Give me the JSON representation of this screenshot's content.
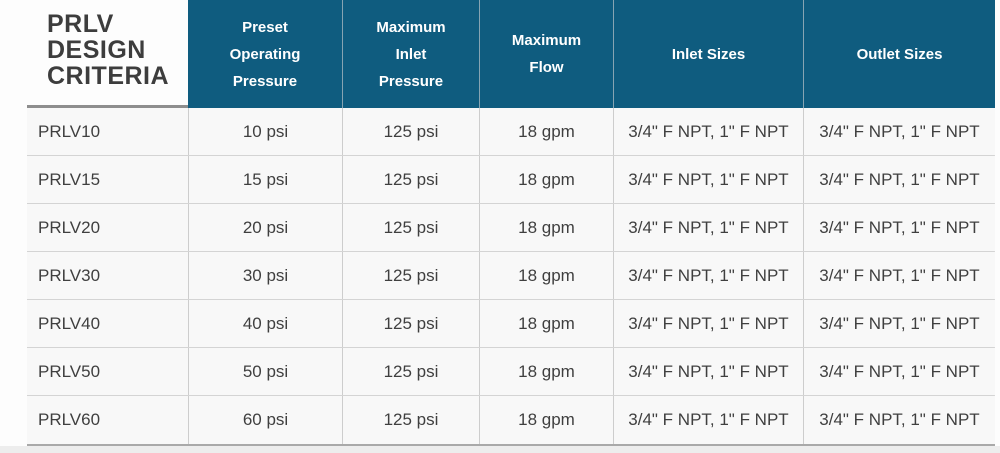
{
  "table": {
    "corner_title": "PRLV DESIGN CRITERIA",
    "corner_title_lines": [
      "PRLV",
      "DESIGN",
      "CRITERIA"
    ],
    "columns": [
      {
        "label": "Preset Operating Pressure",
        "lines": [
          "Preset",
          "Operating",
          "Pressure"
        ]
      },
      {
        "label": "Maximum Inlet Pressure",
        "lines": [
          "Maximum",
          "Inlet",
          "Pressure"
        ]
      },
      {
        "label": "Maximum Flow",
        "lines": [
          "Maximum",
          "Flow"
        ]
      },
      {
        "label": "Inlet Sizes",
        "lines": [
          "Inlet Sizes"
        ]
      },
      {
        "label": "Outlet Sizes",
        "lines": [
          "Outlet Sizes"
        ]
      }
    ],
    "rows": [
      {
        "model": "PRLV10",
        "preset": "10 psi",
        "max_inlet": "125 psi",
        "max_flow": "18 gpm",
        "inlet_sizes": "3/4\" F NPT, 1\" F NPT",
        "outlet_sizes": "3/4\" F NPT, 1\" F NPT"
      },
      {
        "model": "PRLV15",
        "preset": "15 psi",
        "max_inlet": "125 psi",
        "max_flow": "18 gpm",
        "inlet_sizes": "3/4\" F NPT, 1\" F NPT",
        "outlet_sizes": "3/4\" F NPT, 1\" F NPT"
      },
      {
        "model": "PRLV20",
        "preset": "20 psi",
        "max_inlet": "125 psi",
        "max_flow": "18 gpm",
        "inlet_sizes": "3/4\" F NPT, 1\" F NPT",
        "outlet_sizes": "3/4\" F NPT, 1\" F NPT"
      },
      {
        "model": "PRLV30",
        "preset": "30 psi",
        "max_inlet": "125 psi",
        "max_flow": "18 gpm",
        "inlet_sizes": "3/4\" F NPT, 1\" F NPT",
        "outlet_sizes": "3/4\" F NPT, 1\" F NPT"
      },
      {
        "model": "PRLV40",
        "preset": "40 psi",
        "max_inlet": "125 psi",
        "max_flow": "18 gpm",
        "inlet_sizes": "3/4\" F NPT, 1\" F NPT",
        "outlet_sizes": "3/4\" F NPT, 1\" F NPT"
      },
      {
        "model": "PRLV50",
        "preset": "50 psi",
        "max_inlet": "125 psi",
        "max_flow": "18 gpm",
        "inlet_sizes": "3/4\" F NPT, 1\" F NPT",
        "outlet_sizes": "3/4\" F NPT, 1\" F NPT"
      },
      {
        "model": "PRLV60",
        "preset": "60 psi",
        "max_inlet": "125 psi",
        "max_flow": "18 gpm",
        "inlet_sizes": "3/4\" F NPT, 1\" F NPT",
        "outlet_sizes": "3/4\" F NPT, 1\" F NPT"
      }
    ]
  },
  "colors": {
    "header_bg": "#0f5c7f",
    "header_text": "#ffffff",
    "body_text": "#3f3f3f",
    "title_text": "#3d3d3d",
    "cell_bg": "#f8f8f8",
    "row_separator": "#d4d4d4",
    "title_underline": "#8e8e8e",
    "table_bottom_border": "#a9a9a9"
  }
}
